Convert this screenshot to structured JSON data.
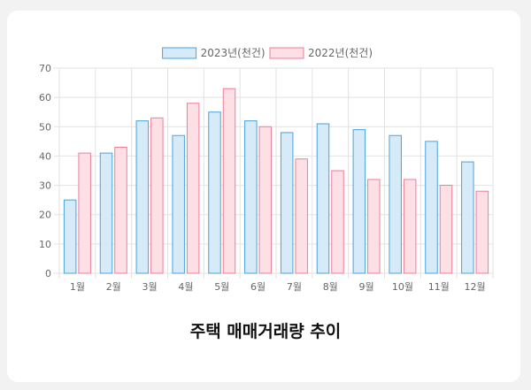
{
  "chart_data": {
    "type": "bar",
    "title": "주택 매매거래량 추이",
    "categories": [
      "1월",
      "2월",
      "3월",
      "4월",
      "5월",
      "6월",
      "7월",
      "8월",
      "9월",
      "10월",
      "11월",
      "12월"
    ],
    "series": [
      {
        "name": "2023년(천건)",
        "values": [
          25,
          41,
          52,
          47,
          55,
          52,
          48,
          51,
          49,
          47,
          45,
          38
        ],
        "fill": "#d6eaf8",
        "stroke": "#4aa3df"
      },
      {
        "name": "2022년(천건)",
        "values": [
          41,
          43,
          53,
          58,
          63,
          50,
          39,
          35,
          32,
          32,
          30,
          28
        ],
        "fill": "#fde0e6",
        "stroke": "#f07d98"
      }
    ],
    "ylim": [
      0,
      70
    ],
    "yticks": [
      0,
      10,
      20,
      30,
      40,
      50,
      60,
      70
    ],
    "grid": true,
    "legend": "top-center"
  }
}
